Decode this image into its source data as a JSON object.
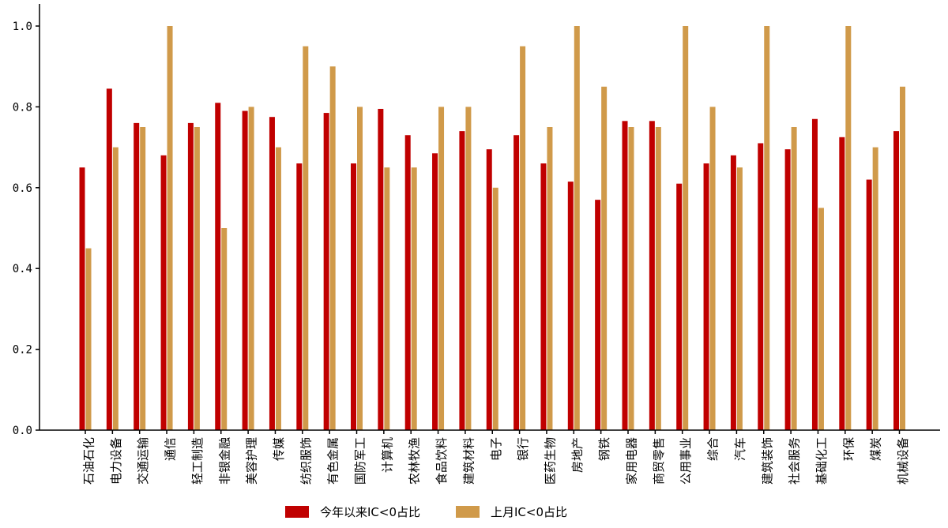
{
  "chart_data": {
    "type": "bar",
    "title": "",
    "xlabel": "",
    "ylabel": "",
    "ylim": [
      0,
      1.0
    ],
    "yticks": [
      "0.0",
      "0.2",
      "0.4",
      "0.6",
      "0.8",
      "1.0"
    ],
    "grid": false,
    "legend_position": "bottom-center",
    "categories": [
      "石油石化",
      "电力设备",
      "交通运输",
      "通信",
      "轻工制造",
      "非银金融",
      "美容护理",
      "传媒",
      "纺织服饰",
      "有色金属",
      "国防军工",
      "计算机",
      "农林牧渔",
      "食品饮料",
      "建筑材料",
      "电子",
      "银行",
      "医药生物",
      "房地产",
      "钢铁",
      "家用电器",
      "商贸零售",
      "公用事业",
      "综合",
      "汽车",
      "建筑装饰",
      "社会服务",
      "基础化工",
      "环保",
      "煤炭",
      "机械设备"
    ],
    "series": [
      {
        "name": "今年以来IC<0占比",
        "color": "#c00000",
        "values": [
          0.65,
          0.845,
          0.76,
          0.68,
          0.76,
          0.81,
          0.79,
          0.775,
          0.66,
          0.785,
          0.66,
          0.795,
          0.73,
          0.685,
          0.74,
          0.695,
          0.73,
          0.66,
          0.615,
          0.57,
          0.765,
          0.765,
          0.61,
          0.66,
          0.68,
          0.71,
          0.695,
          0.77,
          0.725,
          0.62,
          0.74
        ]
      },
      {
        "name": "上月IC<0占比",
        "color": "#d09a4a",
        "values": [
          0.45,
          0.7,
          0.75,
          1.0,
          0.75,
          0.5,
          0.8,
          0.7,
          0.95,
          0.9,
          0.8,
          0.65,
          0.65,
          0.8,
          0.8,
          0.6,
          0.95,
          0.75,
          1.0,
          0.85,
          0.75,
          0.75,
          1.0,
          0.8,
          0.65,
          1.0,
          0.75,
          0.55,
          1.0,
          0.7,
          0.85
        ]
      }
    ]
  }
}
